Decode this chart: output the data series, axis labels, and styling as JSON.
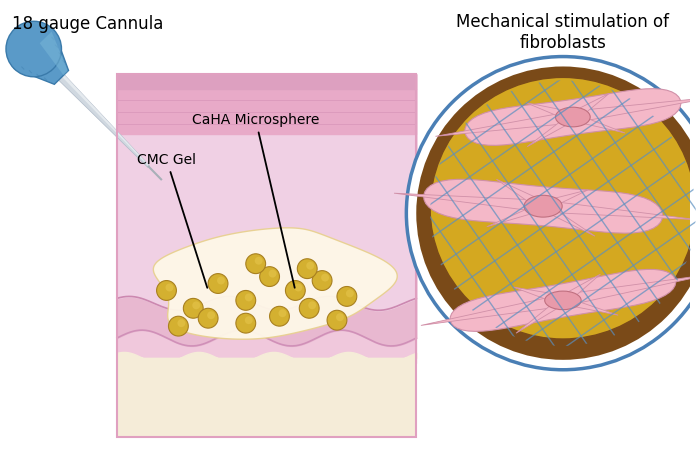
{
  "title": "18 gauge Cannula",
  "title2": "Mechanical stimulation of\nfibroblasts",
  "label_caha": "CaHA Microsphere",
  "label_cmc": "CMC Gel",
  "bg_color": "#ffffff",
  "skin_outer_color": "#f0c8dc",
  "skin_epidermis_top": "#e8aac8",
  "skin_epidermis_bot": "#dda0c0",
  "skin_dermis_color": "#f2d0e0",
  "skin_dermal_net": "#e8b8d0",
  "skin_subdermal_color": "#fce8c0",
  "skin_fat_color": "#f8f0e0",
  "skin_bottom_color": "#f5ecd8",
  "microsphere_color": "#d4b030",
  "ms_bg_color": "#fdf5dc",
  "circle_outer_color": "#4a7fb5",
  "circle_white_ring": "#ffffff",
  "circle_brown_ring": "#7a4a18",
  "circle_inner_bg": "#d4a820",
  "cell_color": "#f4b8c8",
  "cell_edge_color": "#d090a8",
  "cell_nucleus_color": "#e89aaa",
  "cell_nucleus_edge": "#c07080",
  "fiber_color": "#5a8fc0",
  "cannula_body_color": "#d0d8e0",
  "cannula_highlight": "#eef2f5",
  "cannula_shadow": "#a0aab5",
  "cannula_hub_color": "#5a9ac8",
  "cannula_hub_dark": "#3a7aaa",
  "connect_color": "#c8dff0",
  "annotation_color": "#000000",
  "skin_box_edge": "#e0a0c0"
}
